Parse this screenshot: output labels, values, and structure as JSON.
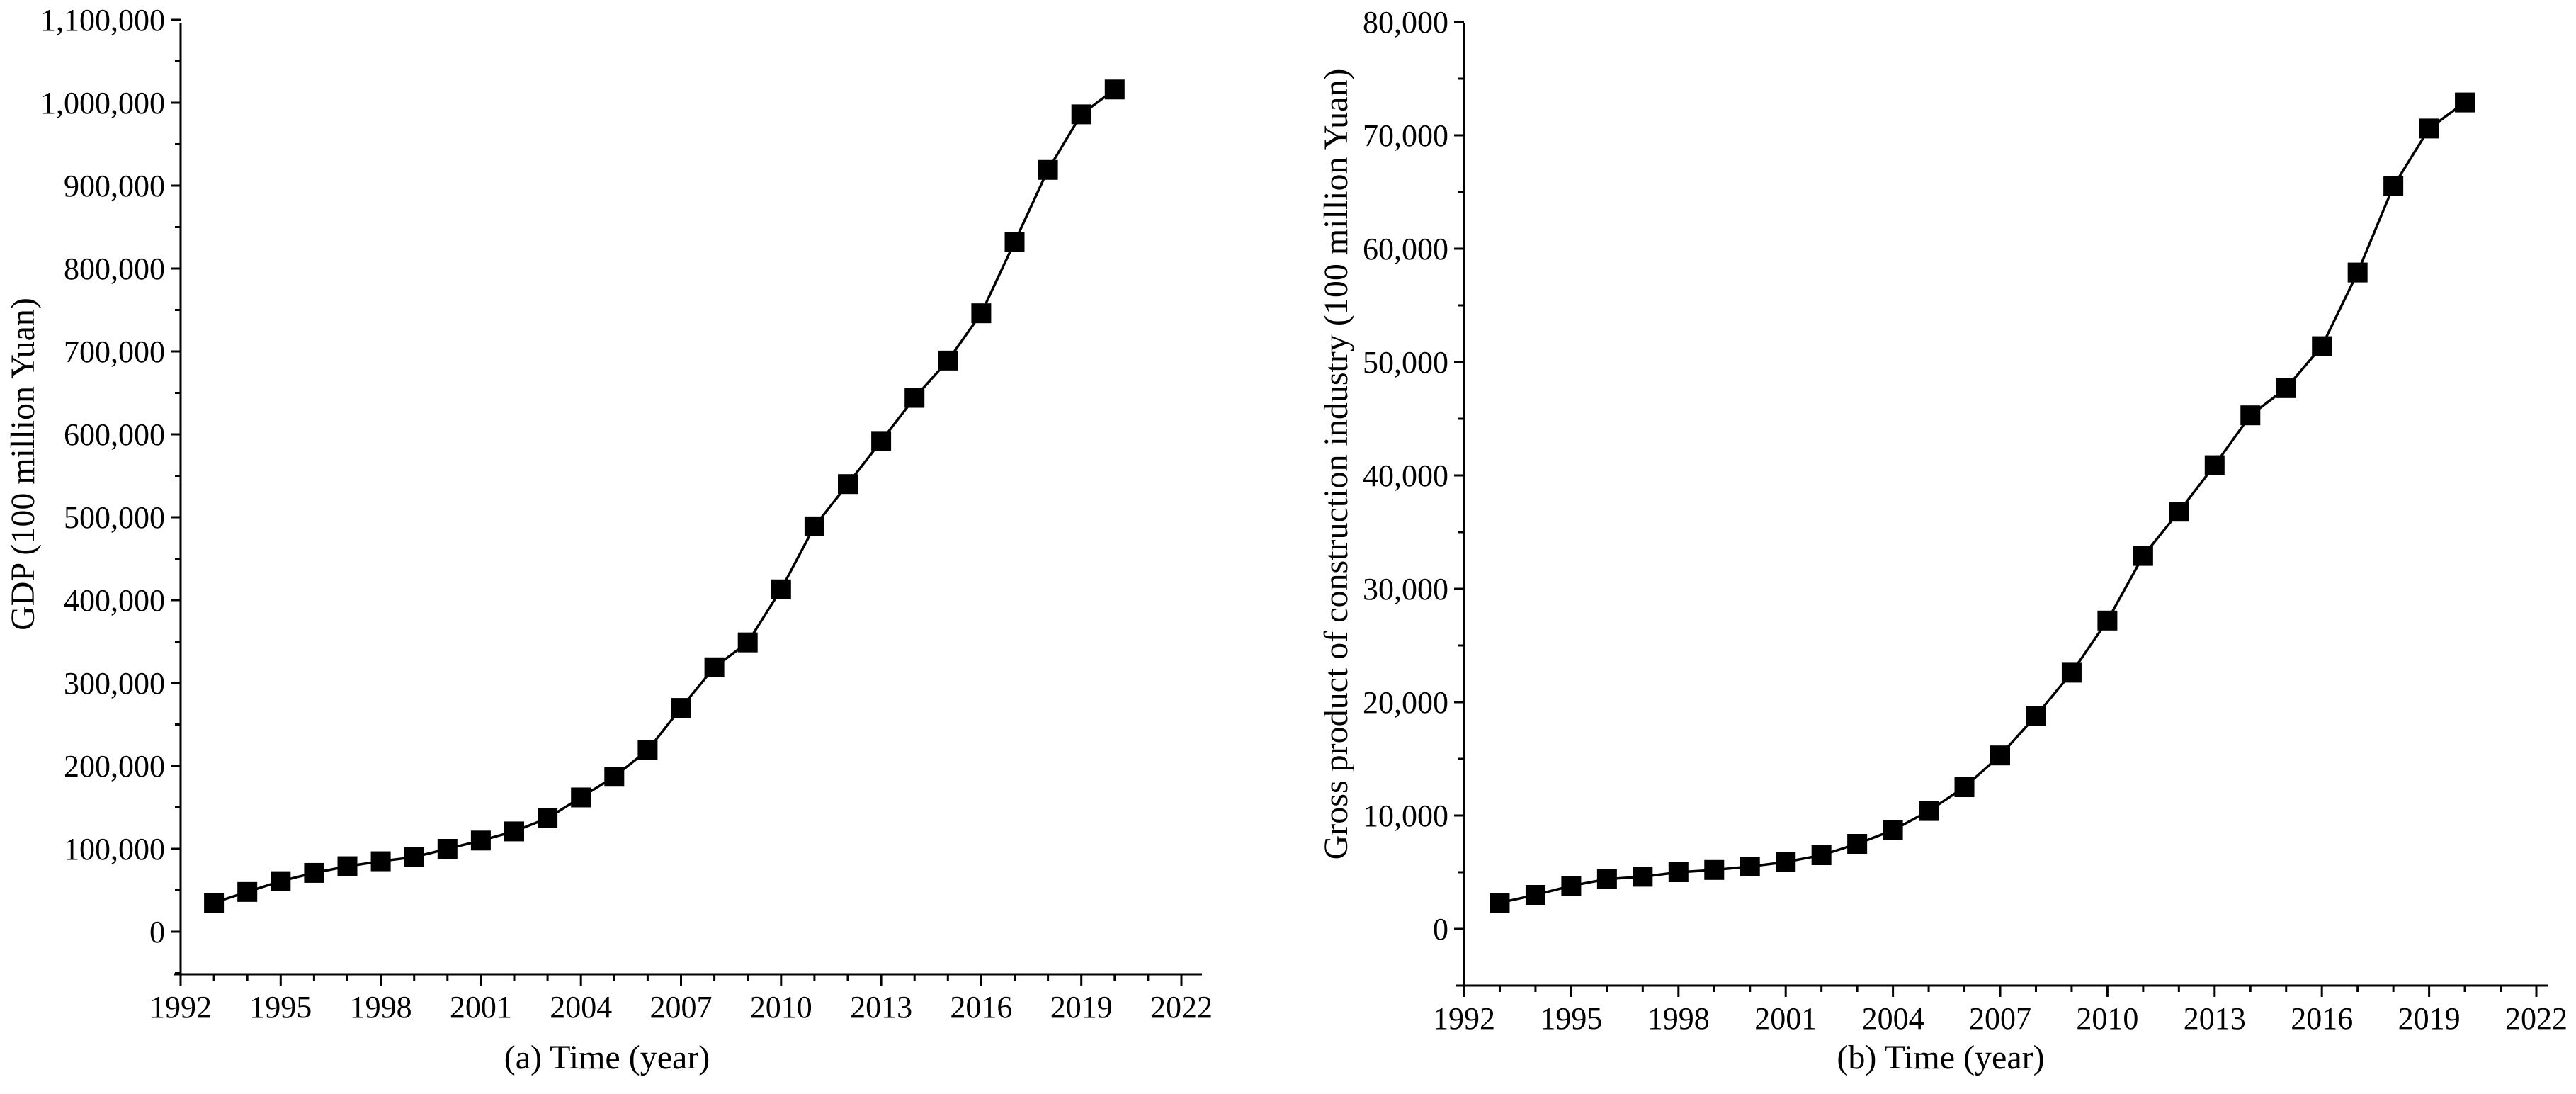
{
  "chart_data": [
    {
      "type": "line",
      "panel_label": "(a)",
      "xlabel": "Time (year)",
      "ylabel": "GDP (100 million Yuan)",
      "xlim": [
        1992,
        2022
      ],
      "ylim": [
        -50000,
        1100000
      ],
      "x_ticks": [
        "1992",
        "1995",
        "1998",
        "2001",
        "2004",
        "2007",
        "2010",
        "2013",
        "2016",
        "2019",
        "2022"
      ],
      "y_ticks": [
        "0",
        "100,000",
        "200,000",
        "300,000",
        "400,000",
        "500,000",
        "600,000",
        "700,000",
        "800,000",
        "900,000",
        "1,000,000",
        "1,100,000"
      ],
      "marker": "square",
      "color": "#000000",
      "x": [
        1993,
        1994,
        1995,
        1996,
        1997,
        1998,
        1999,
        2000,
        2001,
        2002,
        2003,
        2004,
        2005,
        2006,
        2007,
        2008,
        2009,
        2010,
        2011,
        2012,
        2013,
        2014,
        2015,
        2016,
        2017,
        2018,
        2019,
        2020
      ],
      "values": [
        35000,
        48000,
        61000,
        71000,
        79000,
        85000,
        90000,
        100000,
        110000,
        121000,
        137000,
        162000,
        187000,
        219000,
        270000,
        319000,
        349000,
        413000,
        489000,
        540000,
        592000,
        644000,
        689000,
        746000,
        832000,
        919000,
        986000,
        1016000
      ]
    },
    {
      "type": "line",
      "panel_label": "(b)",
      "xlabel": "Time (year)",
      "ylabel": "Gross product of construction industry (100 million Yuan)",
      "xlim": [
        1992,
        2022
      ],
      "ylim": [
        -5000,
        80000
      ],
      "x_ticks": [
        "1992",
        "1995",
        "1998",
        "2001",
        "2004",
        "2007",
        "2010",
        "2013",
        "2016",
        "2019",
        "2022"
      ],
      "y_ticks": [
        "0",
        "10,000",
        "20,000",
        "30,000",
        "40,000",
        "50,000",
        "60,000",
        "70,000",
        "80,000"
      ],
      "marker": "square",
      "color": "#000000",
      "x": [
        1993,
        1994,
        1995,
        1996,
        1997,
        1998,
        1999,
        2000,
        2001,
        2002,
        2003,
        2004,
        2005,
        2006,
        2007,
        2008,
        2009,
        2010,
        2011,
        2012,
        2013,
        2014,
        2015,
        2016,
        2017,
        2018,
        2019,
        2020
      ],
      "values": [
        2300,
        3000,
        3800,
        4400,
        4600,
        5000,
        5200,
        5500,
        5900,
        6500,
        7500,
        8700,
        10400,
        12500,
        15300,
        18800,
        22600,
        27200,
        32900,
        36800,
        40900,
        45300,
        47700,
        51400,
        57900,
        65500,
        70600,
        72900
      ]
    }
  ]
}
